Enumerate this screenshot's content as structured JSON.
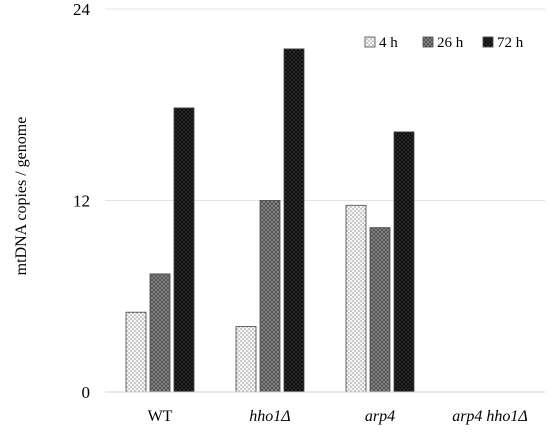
{
  "chart_data": {
    "type": "bar",
    "categories": [
      "WT",
      "hho1Δ",
      "arp4",
      "arp4 hho1Δ"
    ],
    "category_italic": [
      false,
      true,
      true,
      true
    ],
    "series": [
      {
        "name": "4 h",
        "values": [
          5.0,
          4.1,
          11.7,
          0
        ],
        "color": "#e8e8e8",
        "pattern": "dots"
      },
      {
        "name": "26 h",
        "values": [
          7.4,
          12.0,
          10.3,
          0
        ],
        "color": "#7a7a7a",
        "pattern": "grid-mid"
      },
      {
        "name": "72 h",
        "values": [
          17.8,
          21.5,
          16.3,
          0
        ],
        "color": "#1e1e1e",
        "pattern": "grid-dark"
      }
    ],
    "ylabel": "mtDNA copies / genome",
    "xlabel": "",
    "title": "",
    "ylim": [
      0,
      24
    ],
    "yticks": [
      0,
      12,
      24
    ],
    "grid": true,
    "legend_position": "top-right"
  }
}
